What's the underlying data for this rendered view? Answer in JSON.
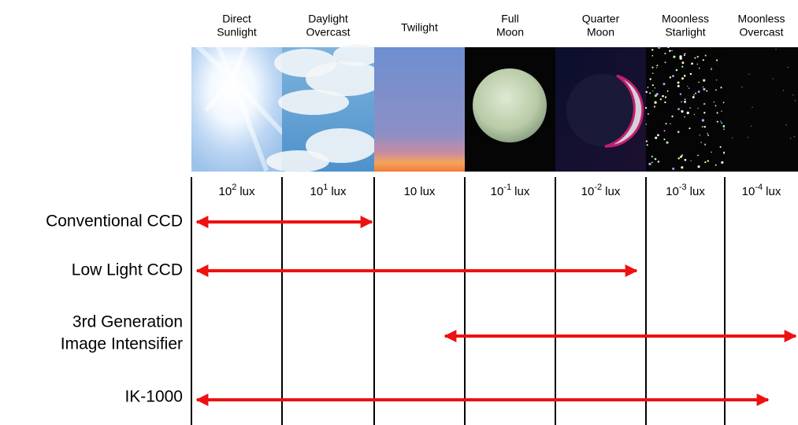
{
  "columns": [
    {
      "header": [
        "Direct",
        "Sunlight"
      ],
      "lux": {
        "base": "10",
        "exponent": "2",
        "unit": "lux"
      }
    },
    {
      "header": [
        "Daylight",
        "Overcast"
      ],
      "lux": {
        "base": "10",
        "exponent": "1",
        "unit": "lux"
      }
    },
    {
      "header": [
        "Twilight"
      ],
      "lux": {
        "base": "10",
        "unit": "lux"
      }
    },
    {
      "header": [
        "Full",
        "Moon"
      ],
      "lux": {
        "base": "10",
        "exponent": "-1",
        "unit": "lux"
      }
    },
    {
      "header": [
        "Quarter",
        "Moon"
      ],
      "lux": {
        "base": "10",
        "exponent": "-2",
        "unit": "lux"
      }
    },
    {
      "header": [
        "Moonless",
        "Starlight"
      ],
      "lux": {
        "base": "10",
        "exponent": "-3",
        "unit": "lux"
      }
    },
    {
      "header": [
        "Moonless",
        "Overcast"
      ],
      "lux": {
        "base": "10",
        "exponent": "-4",
        "unit": "lux"
      }
    }
  ],
  "rows": [
    {
      "label": [
        "Conventional CCD"
      ]
    },
    {
      "label": [
        "Low Light CCD"
      ]
    },
    {
      "label": [
        "3rd Generation",
        "Image Intensifier"
      ]
    },
    {
      "label": [
        "IK-1000"
      ]
    }
  ]
}
